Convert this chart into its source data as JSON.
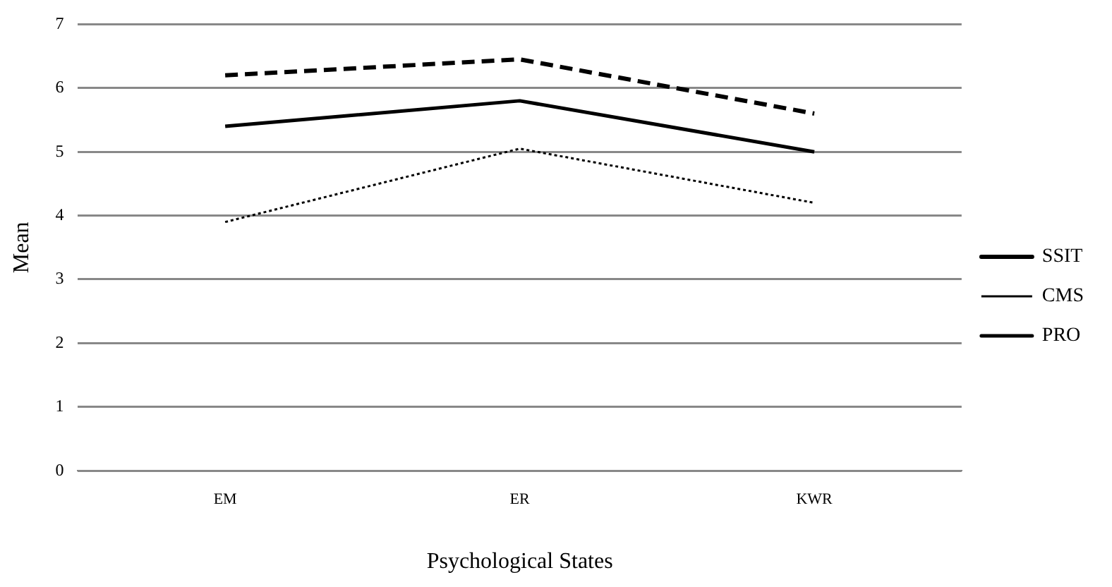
{
  "chart_data": {
    "type": "line",
    "xlabel": "Psychological States",
    "ylabel": "Mean",
    "categories": [
      "EM",
      "ER",
      "KWR"
    ],
    "series": [
      {
        "name": "SSIT",
        "color": "#000000",
        "line_style": "dashed",
        "values": [
          6.2,
          6.45,
          5.6
        ]
      },
      {
        "name": "CMS",
        "color": "#000000",
        "line_style": "dotted",
        "values": [
          3.9,
          5.05,
          4.2
        ]
      },
      {
        "name": "PRO",
        "color": "#000000",
        "line_style": "solid",
        "values": [
          5.4,
          5.8,
          5.0
        ]
      }
    ],
    "ylim": [
      0,
      7
    ],
    "yticks": [
      0,
      1,
      2,
      3,
      4,
      5,
      6,
      7
    ],
    "grid": "y",
    "legend": "right",
    "marker": "none"
  }
}
